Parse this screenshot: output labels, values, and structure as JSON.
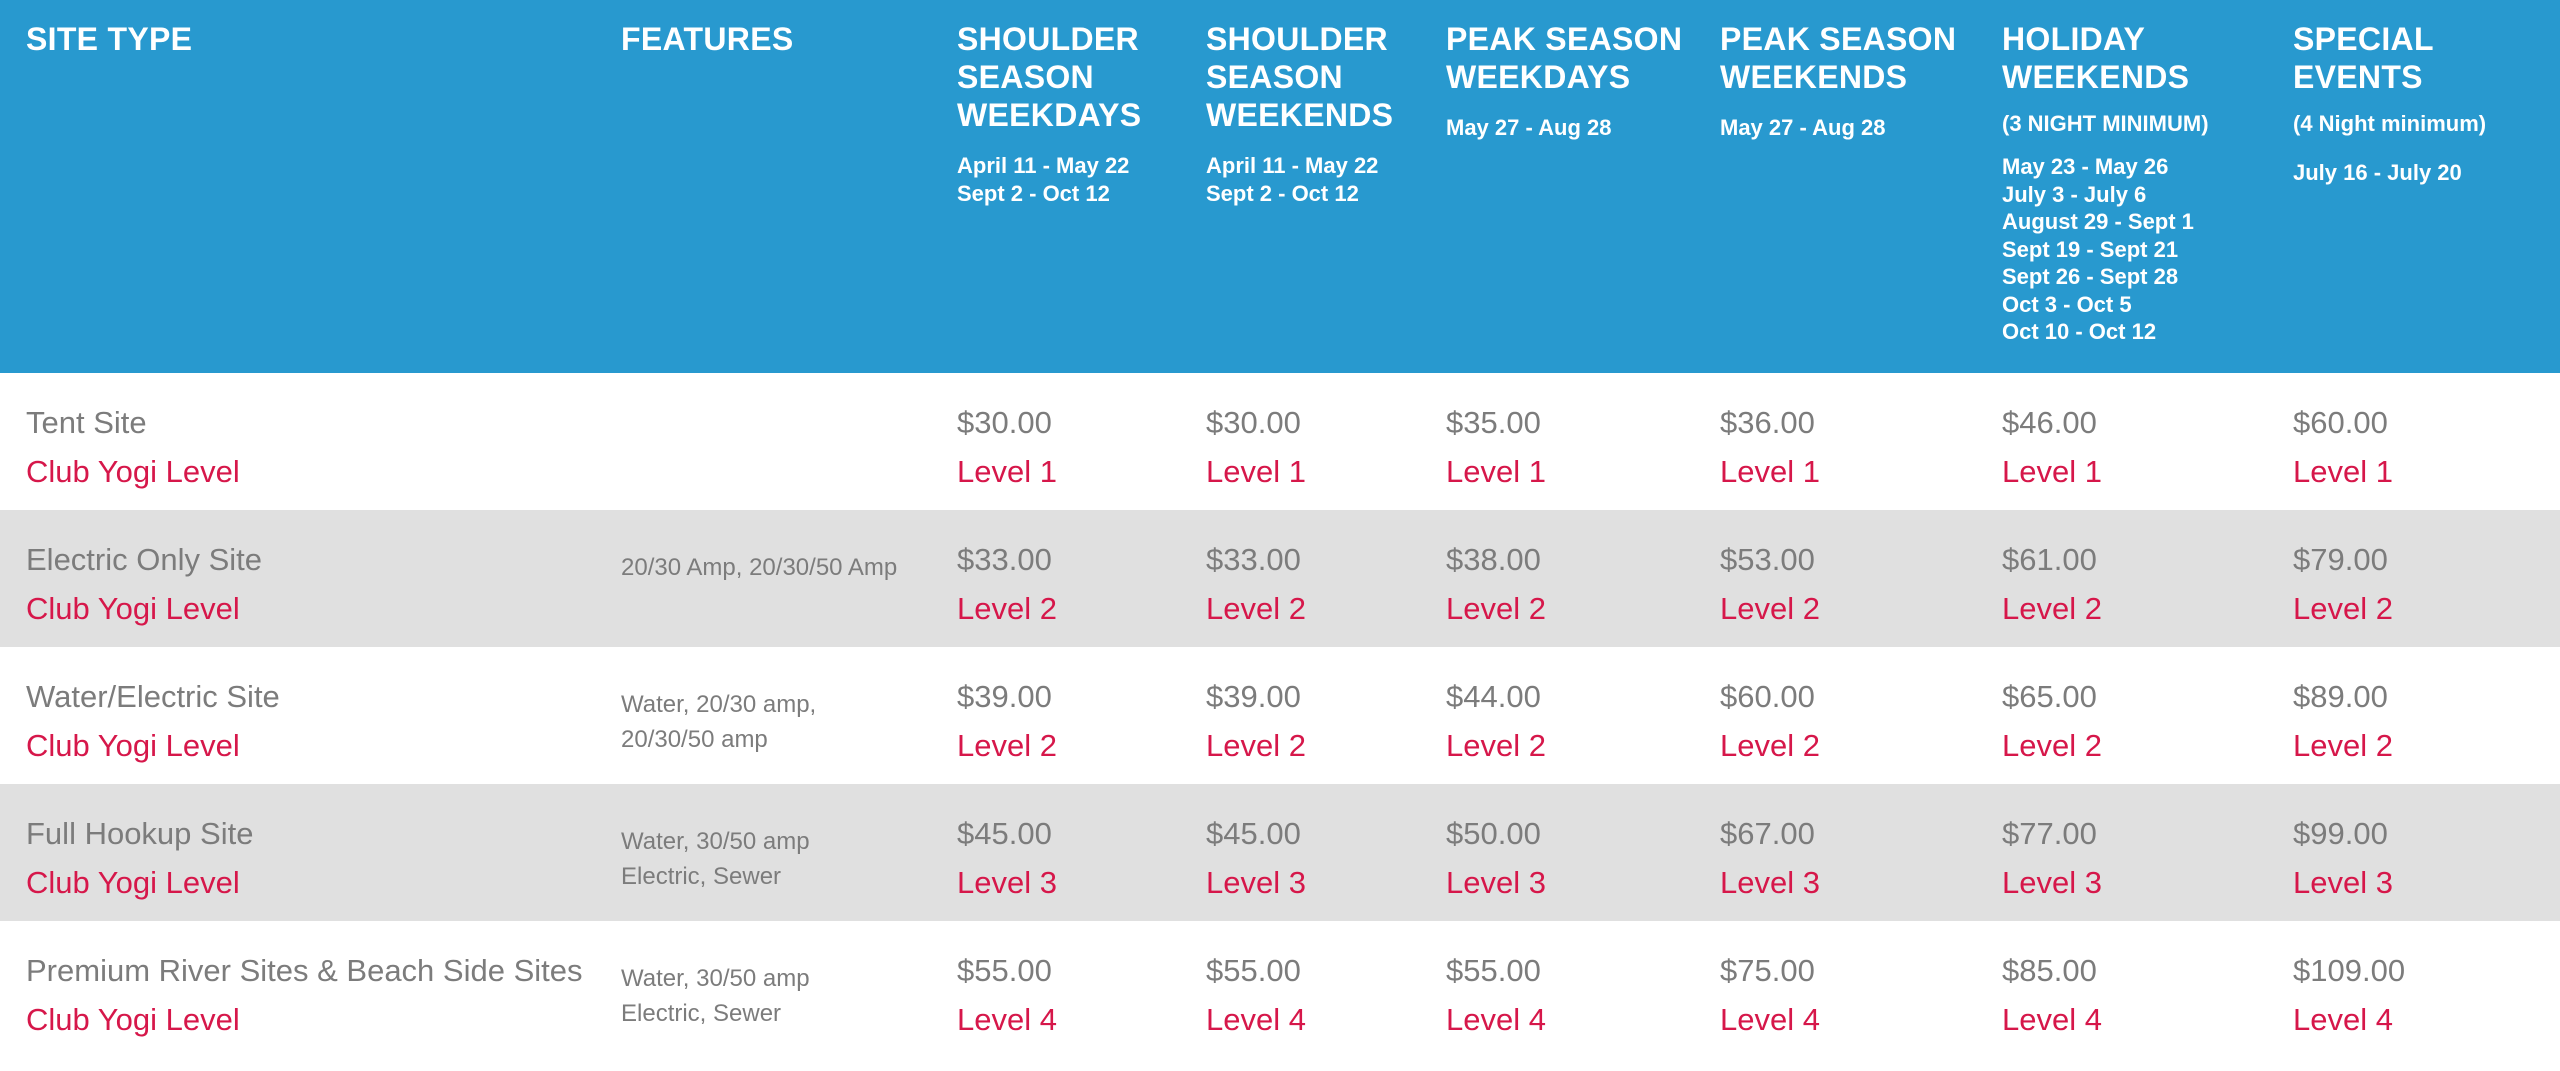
{
  "header": {
    "columns": [
      {
        "title": "SITE TYPE",
        "note": "",
        "dates": []
      },
      {
        "title": "FEATURES",
        "note": "",
        "dates": []
      },
      {
        "title": "SHOULDER\nSEASON\nWEEKDAYS",
        "note": "",
        "dates": [
          "April 11 - May 22",
          "Sept 2 - Oct 12"
        ]
      },
      {
        "title": "SHOULDER\nSEASON\nWEEKENDS",
        "note": "",
        "dates": [
          "April 11 - May 22",
          "Sept 2 - Oct 12"
        ]
      },
      {
        "title": "PEAK SEASON\nWEEKDAYS",
        "note": "",
        "dates": [
          "May 27 - Aug 28"
        ]
      },
      {
        "title": "PEAK SEASON\nWEEKENDS",
        "note": "",
        "dates": [
          "May 27 - Aug 28"
        ]
      },
      {
        "title": "HOLIDAY\nWEEKENDS",
        "note": "(3 NIGHT MINIMUM)",
        "dates": [
          "May 23 - May 26",
          "July 3 - July 6",
          "August 29 - Sept 1",
          "Sept 19 - Sept 21",
          "Sept 26 - Sept 28",
          "Oct 3 - Oct 5",
          "Oct 10 - Oct 12"
        ]
      },
      {
        "title": "SPECIAL\nEVENTS",
        "note": "(4 Night minimum)",
        "dates": [
          "July 16 - July 20"
        ]
      }
    ]
  },
  "rows": [
    {
      "site": "Tent Site",
      "club": "Club Yogi Level",
      "features": "",
      "rates": [
        {
          "price": "$30.00",
          "level": "Level 1"
        },
        {
          "price": "$30.00",
          "level": "Level 1"
        },
        {
          "price": "$35.00",
          "level": "Level 1"
        },
        {
          "price": "$36.00",
          "level": "Level 1"
        },
        {
          "price": "$46.00",
          "level": "Level 1"
        },
        {
          "price": "$60.00",
          "level": "Level 1"
        }
      ]
    },
    {
      "site": "Electric Only Site",
      "club": "Club Yogi Level",
      "features": "20/30 Amp, 20/30/50 Amp",
      "rates": [
        {
          "price": "$33.00",
          "level": "Level 2"
        },
        {
          "price": "$33.00",
          "level": "Level 2"
        },
        {
          "price": "$38.00",
          "level": "Level 2"
        },
        {
          "price": "$53.00",
          "level": "Level 2"
        },
        {
          "price": "$61.00",
          "level": "Level 2"
        },
        {
          "price": "$79.00",
          "level": "Level 2"
        }
      ]
    },
    {
      "site": "Water/Electric Site",
      "club": "Club Yogi Level",
      "features": "Water, 20/30 amp, 20/30/50 amp",
      "rates": [
        {
          "price": "$39.00",
          "level": "Level 2"
        },
        {
          "price": "$39.00",
          "level": "Level 2"
        },
        {
          "price": "$44.00",
          "level": "Level 2"
        },
        {
          "price": "$60.00",
          "level": "Level 2"
        },
        {
          "price": "$65.00",
          "level": "Level 2"
        },
        {
          "price": "$89.00",
          "level": "Level 2"
        }
      ]
    },
    {
      "site": "Full Hookup Site",
      "club": "Club Yogi Level",
      "features": "Water, 30/50 amp Electric, Sewer",
      "rates": [
        {
          "price": "$45.00",
          "level": "Level 3"
        },
        {
          "price": "$45.00",
          "level": "Level 3"
        },
        {
          "price": "$50.00",
          "level": "Level 3"
        },
        {
          "price": "$67.00",
          "level": "Level 3"
        },
        {
          "price": "$77.00",
          "level": "Level 3"
        },
        {
          "price": "$99.00",
          "level": "Level 3"
        }
      ]
    },
    {
      "site": "Premium River Sites & Beach Side Sites",
      "club": "Club Yogi Level",
      "features": "Water, 30/50 amp Electric, Sewer",
      "rates": [
        {
          "price": "$55.00",
          "level": "Level 4"
        },
        {
          "price": "$55.00",
          "level": "Level 4"
        },
        {
          "price": "$55.00",
          "level": "Level 4"
        },
        {
          "price": "$75.00",
          "level": "Level 4"
        },
        {
          "price": "$85.00",
          "level": "Level 4"
        },
        {
          "price": "$109.00",
          "level": "Level 4"
        }
      ]
    }
  ]
}
